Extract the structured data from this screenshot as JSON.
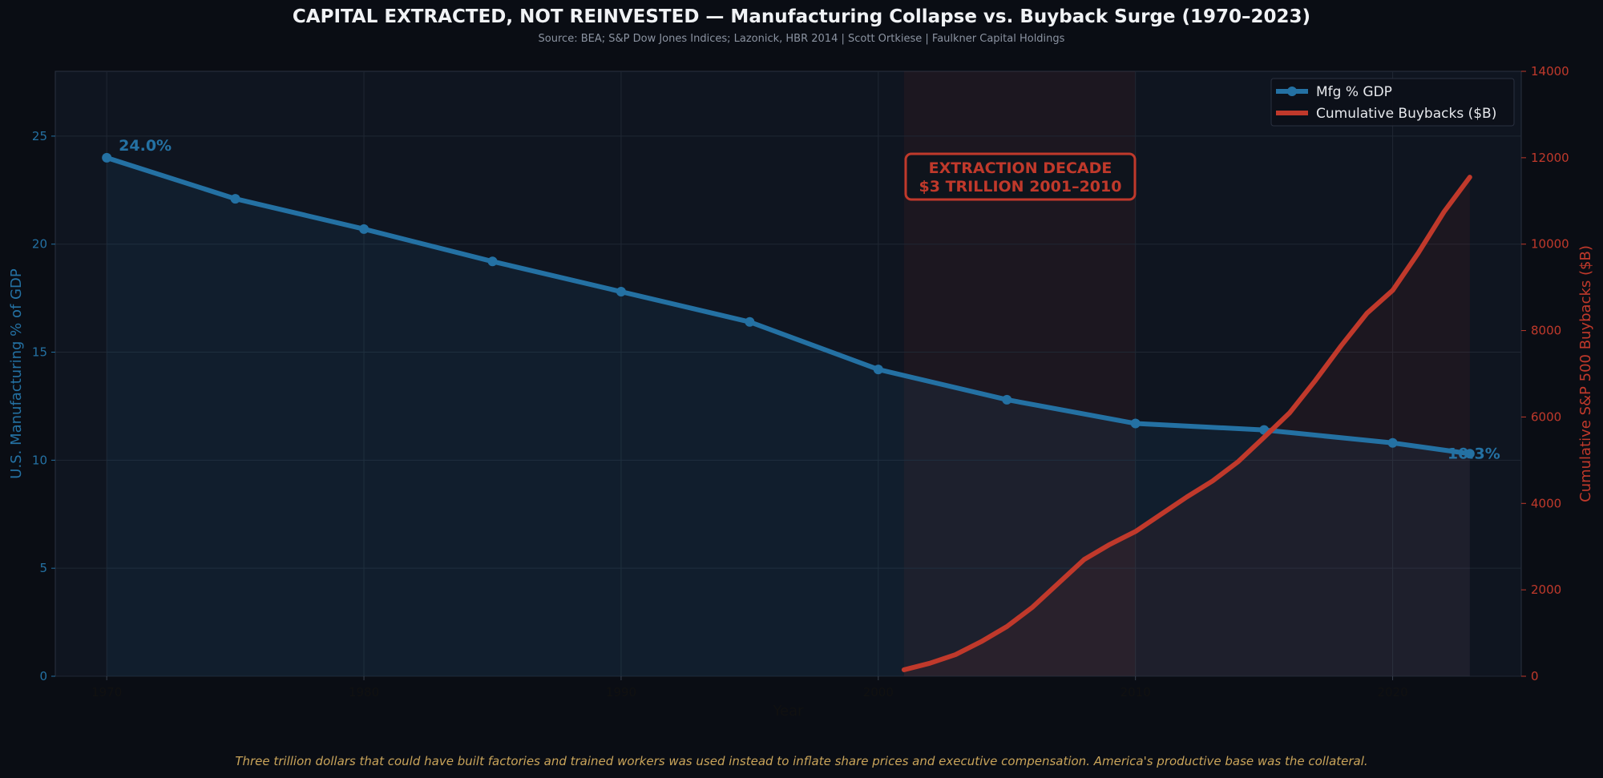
{
  "title": "CAPITAL EXTRACTED, NOT REINVESTED — Manufacturing Collapse vs. Buyback Surge (1970–2023)",
  "subtitle": "Source: BEA; S&P Dow Jones Indices; Lazonick, HBR 2014  |  Scott Ortkiese  |  Faulkner Capital Holdings",
  "footer": "Three trillion dollars that could have built factories and trained workers was used instead to inflate share prices and executive compensation. America's productive base was the collateral.",
  "colors": {
    "background": "#0a0d14",
    "plot_background": "#0f1520",
    "mfg": "#2471a3",
    "buybacks": "#c0392b",
    "annotation": "#c0392b",
    "footer_text": "#c9a45a"
  },
  "chart_data": {
    "type": "line",
    "xlabel": "Year",
    "ylabel_left": "U.S. Manufacturing % of GDP",
    "ylabel_right": "Cumulative S&P 500 Buybacks ($B)",
    "xlim": [
      1968,
      2025
    ],
    "ylim_left": [
      0,
      28
    ],
    "ylim_right": [
      0,
      14000
    ],
    "x_ticks": [
      1970,
      1980,
      1990,
      2000,
      2010,
      2020
    ],
    "y_ticks_left": [
      0,
      5,
      10,
      15,
      20,
      25
    ],
    "y_ticks_right": [
      0,
      2000,
      4000,
      6000,
      8000,
      10000,
      12000,
      14000
    ],
    "grid": true,
    "legend_position": "top-right",
    "legend": [
      "Mfg % GDP",
      "Cumulative Buybacks ($B)"
    ],
    "series": [
      {
        "name": "Mfg % GDP",
        "axis": "left",
        "color": "#2471a3",
        "markers": true,
        "x": [
          1970,
          1975,
          1980,
          1985,
          1990,
          1995,
          2000,
          2005,
          2010,
          2015,
          2020,
          2023
        ],
        "y": [
          24.0,
          22.1,
          20.7,
          19.2,
          17.8,
          16.4,
          14.2,
          12.8,
          11.7,
          11.4,
          10.8,
          10.3
        ]
      },
      {
        "name": "Cumulative Buybacks ($B)",
        "axis": "right",
        "color": "#c0392b",
        "markers": false,
        "x": [
          2001,
          2002,
          2003,
          2004,
          2005,
          2006,
          2007,
          2008,
          2009,
          2010,
          2011,
          2012,
          2013,
          2014,
          2015,
          2016,
          2017,
          2018,
          2019,
          2020,
          2021,
          2022,
          2023
        ],
        "y": [
          150,
          300,
          500,
          800,
          1150,
          1600,
          2150,
          2700,
          3050,
          3350,
          3750,
          4150,
          4520,
          4970,
          5530,
          6100,
          6850,
          7650,
          8400,
          8930,
          9800,
          10750,
          11550
        ]
      }
    ],
    "shaded_region": {
      "x_start": 2001,
      "x_end": 2010
    },
    "annotations": [
      {
        "text": "24.0%",
        "x": 1970,
        "y": 24.0,
        "axis": "left",
        "color": "#2471a3"
      },
      {
        "text": "10.3%",
        "x": 2023,
        "y": 10.3,
        "axis": "left",
        "color": "#2471a3"
      },
      {
        "text_lines": [
          "EXTRACTION DECADE",
          "$3 TRILLION  2001–2010"
        ],
        "color": "#c0392b"
      }
    ]
  }
}
